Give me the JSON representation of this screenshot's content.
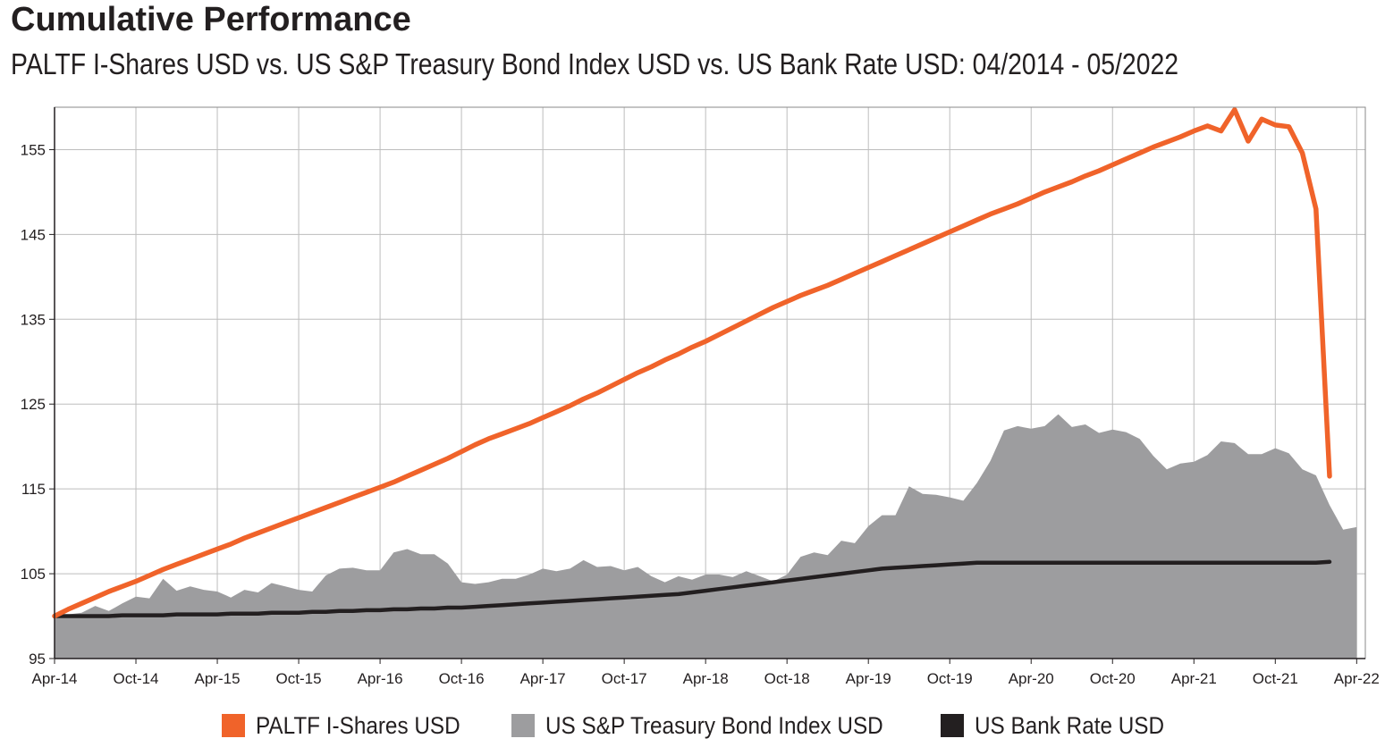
{
  "title": "Cumulative Performance",
  "subtitle": "PALTF I-Shares USD vs. US S&P Treasury Bond Index USD vs. US Bank Rate USD: 04/2014 - 05/2022",
  "colors": {
    "paltf": "#f0632a",
    "treasury": "#9d9d9f",
    "bank": "#231f20",
    "grid": "#bdbdbd"
  },
  "chart_data": {
    "type": "line",
    "x_ticks": [
      "Apr-14",
      "Oct-14",
      "Apr-15",
      "Oct-15",
      "Apr-16",
      "Oct-16",
      "Apr-17",
      "Oct-17",
      "Apr-18",
      "Oct-18",
      "Apr-19",
      "Oct-19",
      "Apr-20",
      "Oct-20",
      "Apr-21",
      "Oct-21",
      "Apr-22"
    ],
    "y_ticks": [
      95,
      105,
      115,
      125,
      135,
      145,
      155
    ],
    "ylim": [
      95,
      160
    ],
    "x_range": [
      "Apr-14",
      "May-22"
    ],
    "grid": true,
    "legend_placement": "bottom",
    "series": [
      {
        "name": "PALTF I-Shares USD",
        "type": "line",
        "values": [
          100.0,
          100.8,
          101.5,
          102.2,
          102.9,
          103.5,
          104.1,
          104.8,
          105.5,
          106.1,
          106.7,
          107.3,
          107.9,
          108.5,
          109.2,
          109.8,
          110.4,
          111.0,
          111.6,
          112.2,
          112.8,
          113.4,
          114.0,
          114.6,
          115.2,
          115.8,
          116.5,
          117.2,
          117.9,
          118.6,
          119.4,
          120.2,
          120.9,
          121.5,
          122.1,
          122.7,
          123.4,
          124.1,
          124.8,
          125.6,
          126.3,
          127.1,
          127.9,
          128.7,
          129.4,
          130.2,
          130.9,
          131.7,
          132.4,
          133.2,
          134.0,
          134.8,
          135.6,
          136.4,
          137.1,
          137.8,
          138.4,
          139.0,
          139.7,
          140.4,
          141.1,
          141.8,
          142.5,
          143.2,
          143.9,
          144.6,
          145.3,
          146.0,
          146.7,
          147.4,
          148.0,
          148.6,
          149.3,
          150.0,
          150.6,
          151.2,
          151.9,
          152.5,
          153.2,
          153.9,
          154.6,
          155.3,
          155.9,
          156.5,
          157.2,
          157.8,
          157.2,
          159.7,
          156.0,
          158.6,
          157.9,
          157.7,
          154.6,
          148.0,
          116.5
        ]
      },
      {
        "name": "US S&P Treasury Bond Index USD",
        "type": "area",
        "values": [
          100.0,
          100.2,
          100.4,
          101.2,
          100.6,
          101.5,
          102.3,
          102.1,
          104.4,
          103.0,
          103.5,
          103.1,
          102.9,
          102.2,
          103.1,
          102.8,
          103.9,
          103.5,
          103.1,
          102.9,
          104.8,
          105.6,
          105.7,
          105.4,
          105.4,
          107.5,
          107.9,
          107.3,
          107.3,
          106.2,
          104.0,
          103.8,
          104.0,
          104.4,
          104.4,
          104.9,
          105.6,
          105.3,
          105.6,
          106.6,
          105.8,
          105.9,
          105.4,
          105.8,
          104.7,
          104.0,
          104.7,
          104.3,
          104.9,
          104.9,
          104.6,
          105.3,
          104.7,
          104.1,
          104.9,
          107.0,
          107.5,
          107.2,
          108.9,
          108.6,
          110.6,
          111.9,
          111.9,
          115.3,
          114.4,
          114.3,
          114.0,
          113.6,
          115.7,
          118.3,
          121.9,
          122.4,
          122.1,
          122.4,
          123.8,
          122.3,
          122.6,
          121.6,
          122.0,
          121.7,
          120.9,
          118.9,
          117.3,
          118.0,
          118.2,
          119.0,
          120.6,
          120.4,
          119.1,
          119.1,
          119.8,
          119.2,
          117.3,
          116.6,
          113.1,
          110.2,
          110.5
        ]
      },
      {
        "name": "US Bank Rate USD",
        "type": "line",
        "values": [
          100.0,
          100.0,
          100.0,
          100.0,
          100.0,
          100.1,
          100.1,
          100.1,
          100.1,
          100.2,
          100.2,
          100.2,
          100.2,
          100.3,
          100.3,
          100.3,
          100.4,
          100.4,
          100.4,
          100.5,
          100.5,
          100.6,
          100.6,
          100.7,
          100.7,
          100.8,
          100.8,
          100.9,
          100.9,
          101.0,
          101.0,
          101.1,
          101.2,
          101.3,
          101.4,
          101.5,
          101.6,
          101.7,
          101.8,
          101.9,
          102.0,
          102.1,
          102.2,
          102.3,
          102.4,
          102.5,
          102.6,
          102.8,
          103.0,
          103.2,
          103.4,
          103.6,
          103.8,
          104.0,
          104.2,
          104.4,
          104.6,
          104.8,
          105.0,
          105.2,
          105.4,
          105.6,
          105.7,
          105.8,
          105.9,
          106.0,
          106.1,
          106.2,
          106.3,
          106.3,
          106.3,
          106.3,
          106.3,
          106.3,
          106.3,
          106.3,
          106.3,
          106.3,
          106.3,
          106.3,
          106.3,
          106.3,
          106.3,
          106.3,
          106.3,
          106.3,
          106.3,
          106.3,
          106.3,
          106.3,
          106.3,
          106.3,
          106.3,
          106.3,
          106.4
        ]
      }
    ]
  },
  "legend": [
    {
      "label": "PALTF I-Shares USD",
      "color": "#f0632a"
    },
    {
      "label": "US S&P Treasury Bond Index USD",
      "color": "#9d9d9f"
    },
    {
      "label": "US Bank Rate USD",
      "color": "#231f20"
    }
  ]
}
